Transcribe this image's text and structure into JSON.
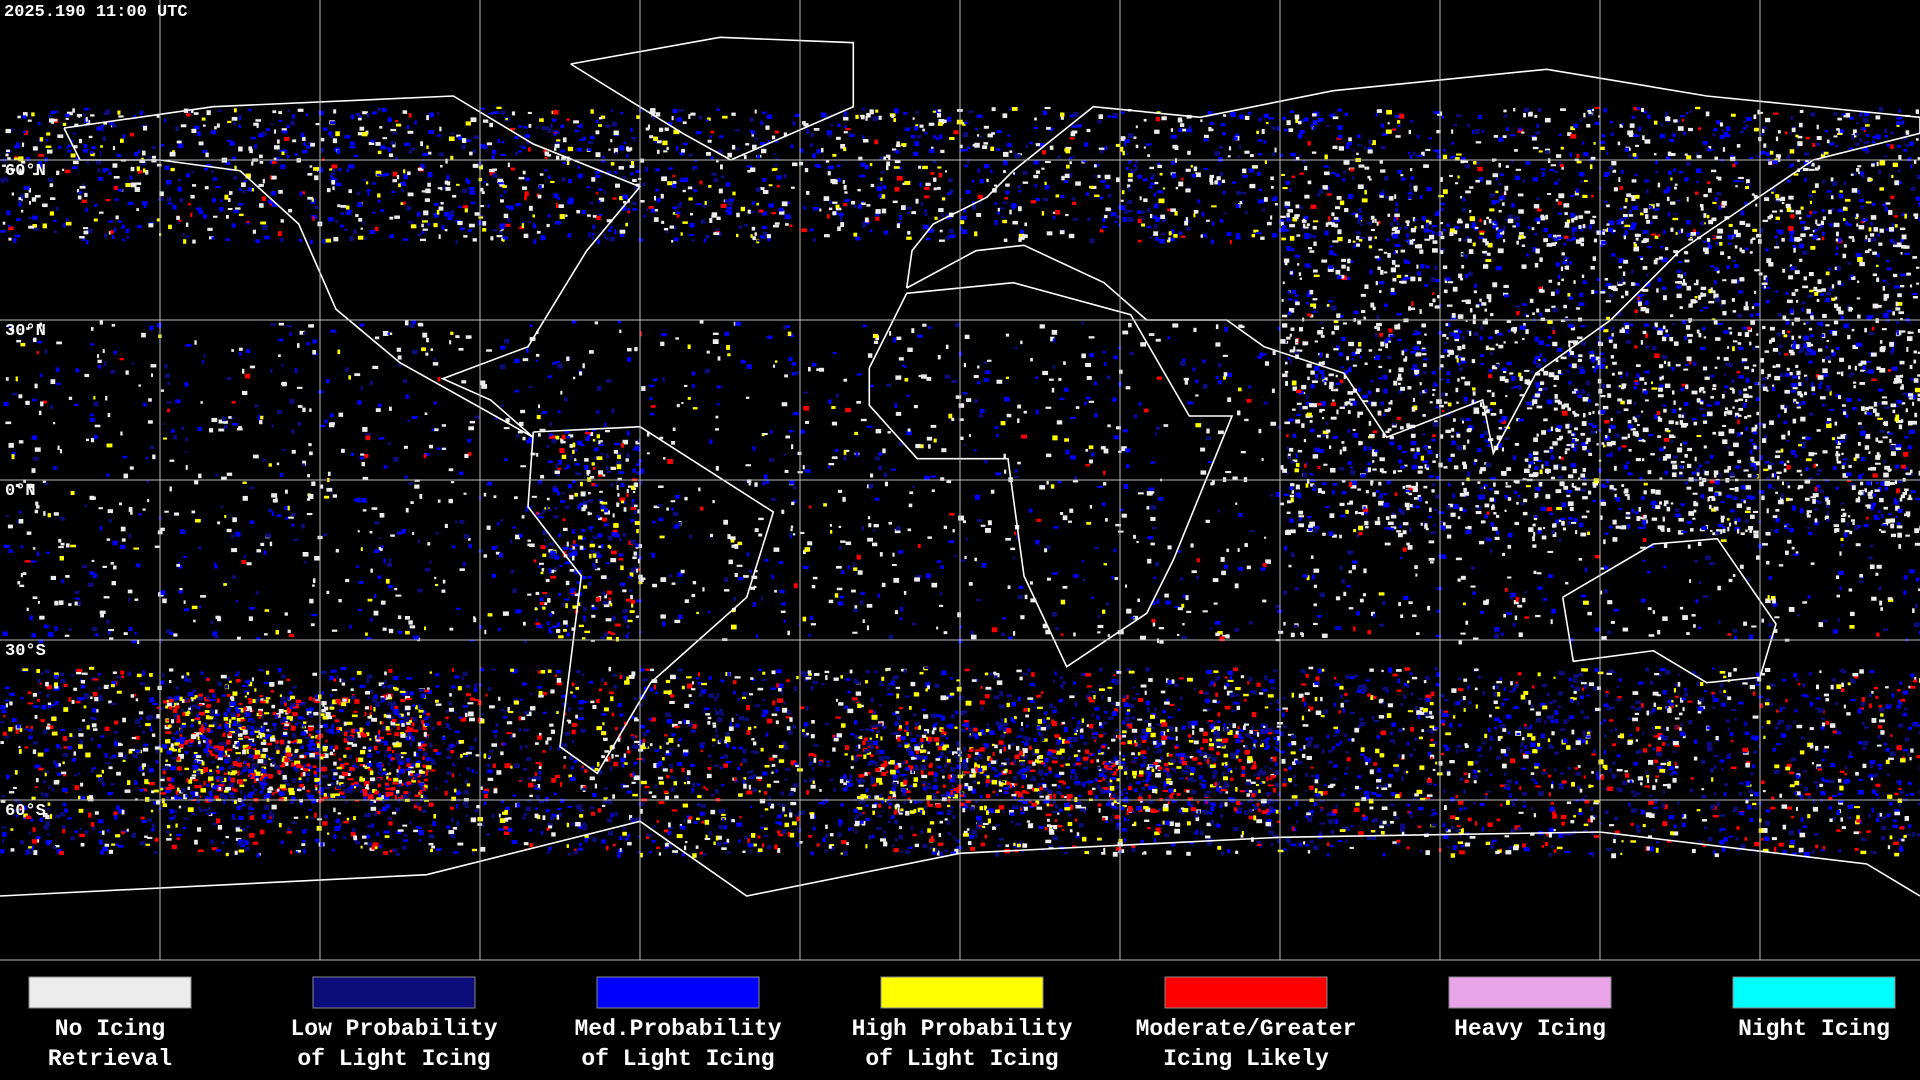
{
  "timestamp": "2025.190 11:00 UTC",
  "latitude_labels": [
    "60°N",
    "30°N",
    "0°N",
    "30°S",
    "60°S"
  ],
  "legend": [
    {
      "lines": [
        "No Icing",
        "Retrieval"
      ],
      "color": "#ececec"
    },
    {
      "lines": [
        "Low Probability",
        "of Light Icing"
      ],
      "color": "#0c0c7a"
    },
    {
      "lines": [
        "Med.Probability",
        "of Light Icing"
      ],
      "color": "#0000ff"
    },
    {
      "lines": [
        "High Probability",
        "of Light Icing"
      ],
      "color": "#ffff00"
    },
    {
      "lines": [
        "Moderate/Greater",
        "Icing Likely"
      ],
      "color": "#ff0000"
    },
    {
      "lines": [
        "Heavy Icing"
      ],
      "color": "#e8a4e6"
    },
    {
      "lines": [
        "Night Icing"
      ],
      "color": "#00ffff"
    }
  ]
}
